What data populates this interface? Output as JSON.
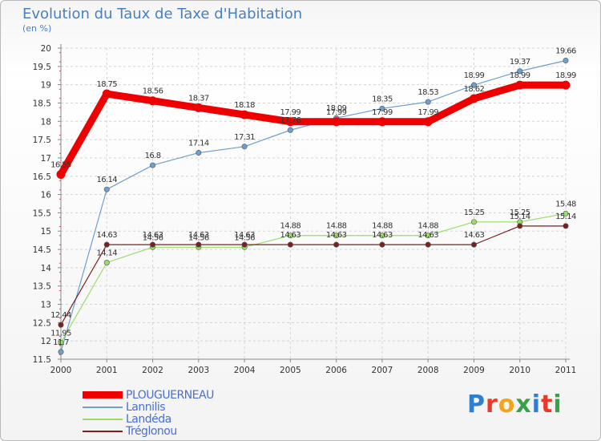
{
  "title": "Evolution du Taux de Taxe d'Habitation",
  "subtitle": "(en %)",
  "logo": {
    "text": "Proxiti",
    "colors": [
      "#2f7fd0",
      "#e8392a",
      "#f2a51b",
      "#3aa14b",
      "#2f7fd0",
      "#e8392a",
      "#3aa14b"
    ]
  },
  "chart_data": {
    "type": "line",
    "x": [
      "2000",
      "2001",
      "2002",
      "2003",
      "2004",
      "2005",
      "2006",
      "2007",
      "2008",
      "2009",
      "2010",
      "2011"
    ],
    "ylim": [
      11.5,
      20
    ],
    "yticks": [
      "11.5",
      "12",
      "12.5",
      "13",
      "13.5",
      "14",
      "14.5",
      "15",
      "15.5",
      "16",
      "16.5",
      "17",
      "17.5",
      "18",
      "18.5",
      "19",
      "19.5",
      "20"
    ],
    "grid": true,
    "legend_position": "bottom-left",
    "series": [
      {
        "name": "PLOUGUERNEAU",
        "color": "#ee0000",
        "values": [
          16.55,
          18.75,
          18.56,
          18.37,
          18.18,
          17.99,
          17.99,
          17.99,
          17.99,
          18.62,
          18.99,
          18.99
        ],
        "labels": [
          "16.55",
          "18.75",
          "18.56",
          "18.37",
          "18.18",
          "17.99",
          "17.99",
          "17.99",
          "17.99",
          "18.62",
          "18.99",
          "18.99"
        ]
      },
      {
        "name": "Lannilis",
        "color": "#6e9fcf",
        "values": [
          11.7,
          16.14,
          16.8,
          17.14,
          17.31,
          17.76,
          18.09,
          18.35,
          18.53,
          18.99,
          19.37,
          19.66
        ],
        "labels": [
          "11.7",
          "16.14",
          "16.8",
          "17.14",
          "17.31",
          "17.76",
          "18.09",
          "18.35",
          "18.53",
          "18.99",
          "19.37",
          "19.66"
        ]
      },
      {
        "name": "Landéda",
        "color": "#99dd66",
        "values": [
          11.95,
          14.14,
          14.56,
          14.56,
          14.56,
          14.88,
          14.88,
          14.88,
          14.88,
          15.25,
          15.25,
          15.48
        ],
        "labels": [
          "11.95",
          "14.14",
          "14.56",
          "14.56",
          "14.56",
          "14.88",
          "14.88",
          "14.88",
          "14.88",
          "15.25",
          "15.25",
          "15.48"
        ]
      },
      {
        "name": "Tréglonou",
        "color": "#7a2020",
        "values": [
          12.44,
          14.63,
          14.63,
          14.63,
          14.63,
          14.63,
          14.63,
          14.63,
          14.63,
          14.63,
          15.14,
          15.14
        ],
        "labels": [
          "12.44",
          "14.63",
          "14.63",
          "14.63",
          "14.63",
          "14.63",
          "14.63",
          "14.63",
          "14.63",
          "14.63",
          "15.14",
          "15.14"
        ]
      }
    ]
  }
}
